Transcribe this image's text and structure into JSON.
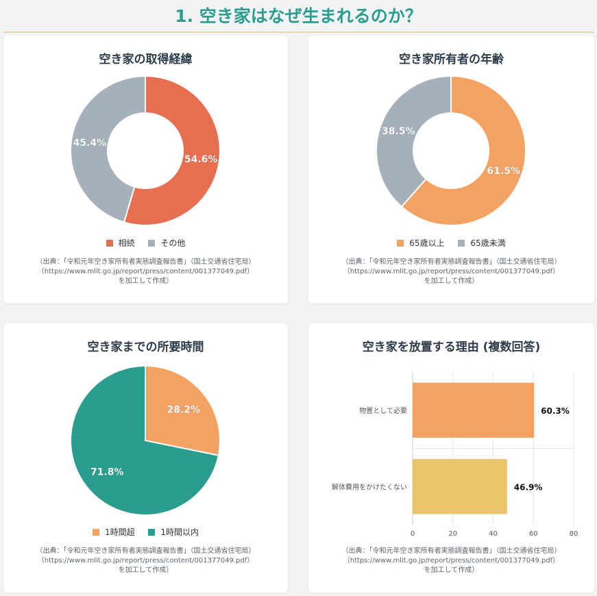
{
  "page": {
    "title": "1. 空き家はなぜ生まれるのか？"
  },
  "source_note": {
    "line1": "（出典：「令和元年空き家所有者実態調査報告書」（国土交通省住宅局）",
    "line2": "（https://www.mlit.go.jp/report/press/content/001377049.pdf）",
    "line3": "を加工して作成）"
  },
  "colors": {
    "accent": "#2a9d8f",
    "coral": "#e76f51",
    "gray": "#a6b0bb",
    "orange": "#f4a261",
    "teal": "#2a9d8f",
    "yellow": "#e9c46a"
  },
  "chart_data": [
    {
      "type": "pie",
      "variant": "donut",
      "title": "空き家の取得経緯",
      "categories": [
        "相続",
        "その他"
      ],
      "values": [
        54.6,
        45.4
      ],
      "labels": [
        "54.6%",
        "45.4%"
      ],
      "colors": [
        "#e76f51",
        "#a6b0bb"
      ],
      "legend": "bottom"
    },
    {
      "type": "pie",
      "variant": "donut",
      "title": "空き家所有者の年齢",
      "categories": [
        "65歳以上",
        "65歳未満"
      ],
      "values": [
        61.5,
        38.5
      ],
      "labels": [
        "61.5%",
        "38.5%"
      ],
      "colors": [
        "#f4a261",
        "#a6b0bb"
      ],
      "legend": "bottom"
    },
    {
      "type": "pie",
      "variant": "pie",
      "title": "空き家までの所要時間",
      "categories": [
        "1時間超",
        "1時間以内"
      ],
      "values": [
        28.2,
        71.8
      ],
      "labels": [
        "28.2%",
        "71.8%"
      ],
      "colors": [
        "#f4a261",
        "#2a9d8f"
      ],
      "legend": "bottom"
    },
    {
      "type": "bar",
      "orientation": "horizontal",
      "title": "空き家を放置する理由 (複数回答)",
      "categories": [
        "物置として必要",
        "解体費用をかけたくない"
      ],
      "values": [
        60.3,
        46.9
      ],
      "labels": [
        "60.3%",
        "46.9%"
      ],
      "colors": [
        "#f4a261",
        "#e9c46a"
      ],
      "xlim": [
        0,
        80
      ],
      "xticks": [
        "0",
        "20",
        "40",
        "60",
        "80"
      ],
      "grid": true
    }
  ]
}
